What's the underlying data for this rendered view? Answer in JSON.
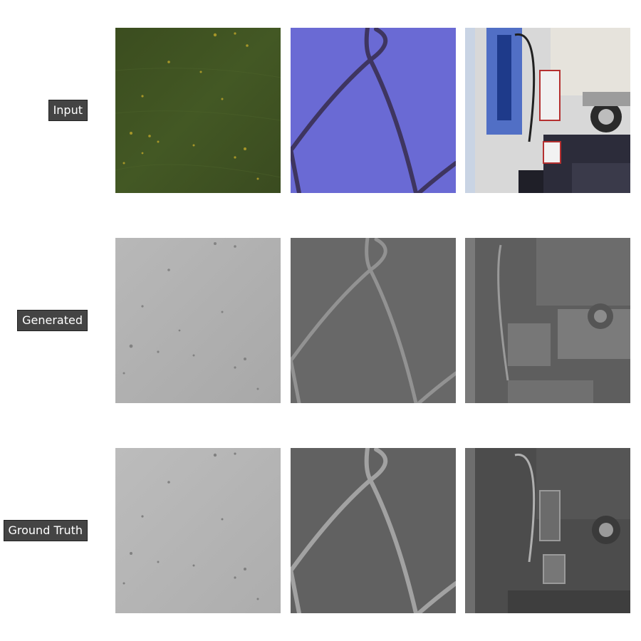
{
  "rows": [
    {
      "label": "Input"
    },
    {
      "label": "Generated"
    },
    {
      "label": "Ground Truth"
    }
  ],
  "colors": {
    "label_background": "#444444",
    "label_text": "#ffffff",
    "grass": "#3f5222",
    "sky_blue": "#6b6bd6",
    "fence_dark": "#3e3560",
    "gray_light": "#b3b3b3",
    "gray_mid": "#6a6a6a",
    "gray_dark": "#4a4a4a"
  }
}
